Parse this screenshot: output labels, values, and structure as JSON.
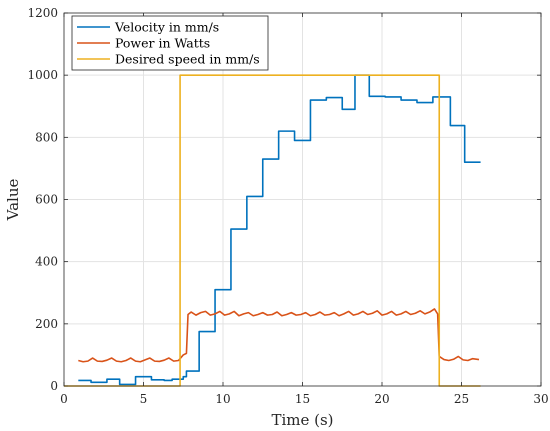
{
  "chart_data": {
    "type": "line",
    "title": "",
    "xlabel": "Time (s)",
    "ylabel": "Value",
    "xlim": [
      0,
      30
    ],
    "ylim": [
      0,
      1200
    ],
    "x_ticks": [
      0,
      5,
      10,
      15,
      20,
      25,
      30
    ],
    "y_ticks": [
      0,
      200,
      400,
      600,
      800,
      1000,
      1200
    ],
    "grid": true,
    "legend_position": "top-left",
    "series": [
      {
        "name": "Velocity in mm/s",
        "color": "#0072BD",
        "step": true,
        "points": [
          [
            0.9,
            18
          ],
          [
            1.7,
            12
          ],
          [
            2.7,
            22
          ],
          [
            3.5,
            5
          ],
          [
            4.5,
            30
          ],
          [
            5.5,
            20
          ],
          [
            6.3,
            18
          ],
          [
            6.8,
            22
          ],
          [
            7.5,
            30
          ],
          [
            7.7,
            48
          ],
          [
            8.5,
            175
          ],
          [
            9.5,
            310
          ],
          [
            10.5,
            505
          ],
          [
            11.5,
            610
          ],
          [
            12.5,
            730
          ],
          [
            13.5,
            820
          ],
          [
            14.5,
            790
          ],
          [
            15.5,
            920
          ],
          [
            16.5,
            928
          ],
          [
            17.5,
            890
          ],
          [
            18.3,
            1000
          ],
          [
            19.2,
            932
          ],
          [
            20.2,
            930
          ],
          [
            21.2,
            920
          ],
          [
            22.2,
            912
          ],
          [
            23.2,
            930
          ],
          [
            24.3,
            838
          ],
          [
            25.2,
            720
          ],
          [
            26.2,
            720
          ]
        ]
      },
      {
        "name": "Power in Watts",
        "color": "#D95319",
        "step": false,
        "points": [
          [
            0.9,
            82
          ],
          [
            1.2,
            78
          ],
          [
            1.5,
            80
          ],
          [
            1.8,
            90
          ],
          [
            2.1,
            80
          ],
          [
            2.4,
            79
          ],
          [
            2.7,
            83
          ],
          [
            3.0,
            90
          ],
          [
            3.3,
            80
          ],
          [
            3.6,
            78
          ],
          [
            3.9,
            82
          ],
          [
            4.2,
            90
          ],
          [
            4.5,
            80
          ],
          [
            4.8,
            78
          ],
          [
            5.1,
            84
          ],
          [
            5.4,
            90
          ],
          [
            5.7,
            80
          ],
          [
            6.0,
            79
          ],
          [
            6.3,
            83
          ],
          [
            6.6,
            90
          ],
          [
            6.9,
            80
          ],
          [
            7.2,
            82
          ],
          [
            7.5,
            100
          ],
          [
            7.7,
            105
          ],
          [
            7.8,
            230
          ],
          [
            8.0,
            238
          ],
          [
            8.3,
            228
          ],
          [
            8.6,
            236
          ],
          [
            8.9,
            240
          ],
          [
            9.2,
            228
          ],
          [
            9.5,
            232
          ],
          [
            9.8,
            240
          ],
          [
            10.1,
            228
          ],
          [
            10.4,
            232
          ],
          [
            10.7,
            240
          ],
          [
            11.0,
            226
          ],
          [
            11.3,
            232
          ],
          [
            11.6,
            236
          ],
          [
            11.9,
            226
          ],
          [
            12.2,
            230
          ],
          [
            12.5,
            236
          ],
          [
            12.8,
            228
          ],
          [
            13.1,
            230
          ],
          [
            13.4,
            238
          ],
          [
            13.7,
            226
          ],
          [
            14.0,
            230
          ],
          [
            14.3,
            236
          ],
          [
            14.6,
            228
          ],
          [
            14.9,
            230
          ],
          [
            15.2,
            236
          ],
          [
            15.5,
            226
          ],
          [
            15.8,
            230
          ],
          [
            16.1,
            238
          ],
          [
            16.4,
            228
          ],
          [
            16.7,
            230
          ],
          [
            17.0,
            236
          ],
          [
            17.3,
            226
          ],
          [
            17.6,
            232
          ],
          [
            17.9,
            240
          ],
          [
            18.2,
            228
          ],
          [
            18.5,
            232
          ],
          [
            18.8,
            240
          ],
          [
            19.1,
            230
          ],
          [
            19.4,
            234
          ],
          [
            19.7,
            242
          ],
          [
            20.0,
            228
          ],
          [
            20.3,
            232
          ],
          [
            20.6,
            240
          ],
          [
            20.9,
            228
          ],
          [
            21.2,
            232
          ],
          [
            21.5,
            240
          ],
          [
            21.8,
            230
          ],
          [
            22.1,
            234
          ],
          [
            22.4,
            242
          ],
          [
            22.7,
            232
          ],
          [
            23.0,
            238
          ],
          [
            23.3,
            248
          ],
          [
            23.5,
            232
          ],
          [
            23.6,
            95
          ],
          [
            23.9,
            85
          ],
          [
            24.2,
            82
          ],
          [
            24.5,
            86
          ],
          [
            24.8,
            95
          ],
          [
            25.1,
            84
          ],
          [
            25.4,
            82
          ],
          [
            25.7,
            88
          ],
          [
            26.1,
            85
          ]
        ]
      },
      {
        "name": "Desired speed in mm/s",
        "color": "#EDB120",
        "step": false,
        "points": [
          [
            0.0,
            0
          ],
          [
            7.3,
            0
          ],
          [
            7.3,
            1000
          ],
          [
            23.6,
            1000
          ],
          [
            23.6,
            0
          ],
          [
            26.2,
            0
          ]
        ]
      }
    ]
  }
}
